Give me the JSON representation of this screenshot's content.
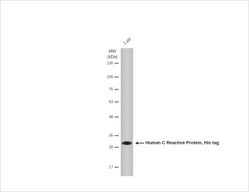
{
  "lane_label": "1 µg",
  "mw_label": "MW",
  "unit_label": "(kDa)",
  "markers": [
    130,
    100,
    75,
    63,
    48,
    35,
    28,
    17
  ],
  "band_label": "Human C Reactive Protein, His tag"
}
